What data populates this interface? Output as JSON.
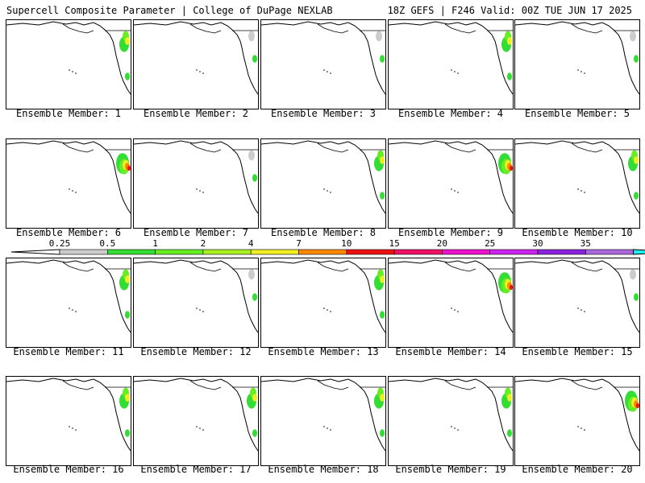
{
  "header": {
    "title_left": "Supercell Composite Parameter | College of DuPage NEXLAB",
    "title_right": "18Z GEFS | F246 Valid: 00Z TUE JUN 17 2025"
  },
  "members": [
    {
      "label": "Ensemble Member: 1",
      "level": "moderate"
    },
    {
      "label": "Ensemble Member: 2",
      "level": "low"
    },
    {
      "label": "Ensemble Member: 3",
      "level": "low"
    },
    {
      "label": "Ensemble Member: 4",
      "level": "moderate"
    },
    {
      "label": "Ensemble Member: 5",
      "level": "low"
    },
    {
      "label": "Ensemble Member: 6",
      "level": "high"
    },
    {
      "label": "Ensemble Member: 7",
      "level": "low"
    },
    {
      "label": "Ensemble Member: 8",
      "level": "moderate"
    },
    {
      "label": "Ensemble Member: 9",
      "level": "high"
    },
    {
      "label": "Ensemble Member: 10",
      "level": "moderate"
    },
    {
      "label": "Ensemble Member: 11",
      "level": "moderate"
    },
    {
      "label": "Ensemble Member: 12",
      "level": "low"
    },
    {
      "label": "Ensemble Member: 13",
      "level": "moderate"
    },
    {
      "label": "Ensemble Member: 14",
      "level": "high"
    },
    {
      "label": "Ensemble Member: 15",
      "level": "low"
    },
    {
      "label": "Ensemble Member: 16",
      "level": "moderate"
    },
    {
      "label": "Ensemble Member: 17",
      "level": "moderate"
    },
    {
      "label": "Ensemble Member: 18",
      "level": "moderate"
    },
    {
      "label": "Ensemble Member: 19",
      "level": "moderate"
    },
    {
      "label": "Ensemble Member: 20",
      "level": "high"
    }
  ],
  "colorbar": {
    "ticks": [
      "0.25",
      "0.5",
      "1",
      "2",
      "4",
      "7",
      "10",
      "15",
      "20",
      "25",
      "30",
      "35"
    ],
    "colors": [
      "#cccccc",
      "#33dd33",
      "#66ee22",
      "#aaee22",
      "#eeee22",
      "#ff8800",
      "#ee1111",
      "#ee1166",
      "#ee11cc",
      "#cc22ee",
      "#8822dd",
      "#aa66dd",
      "#22eeee"
    ]
  }
}
